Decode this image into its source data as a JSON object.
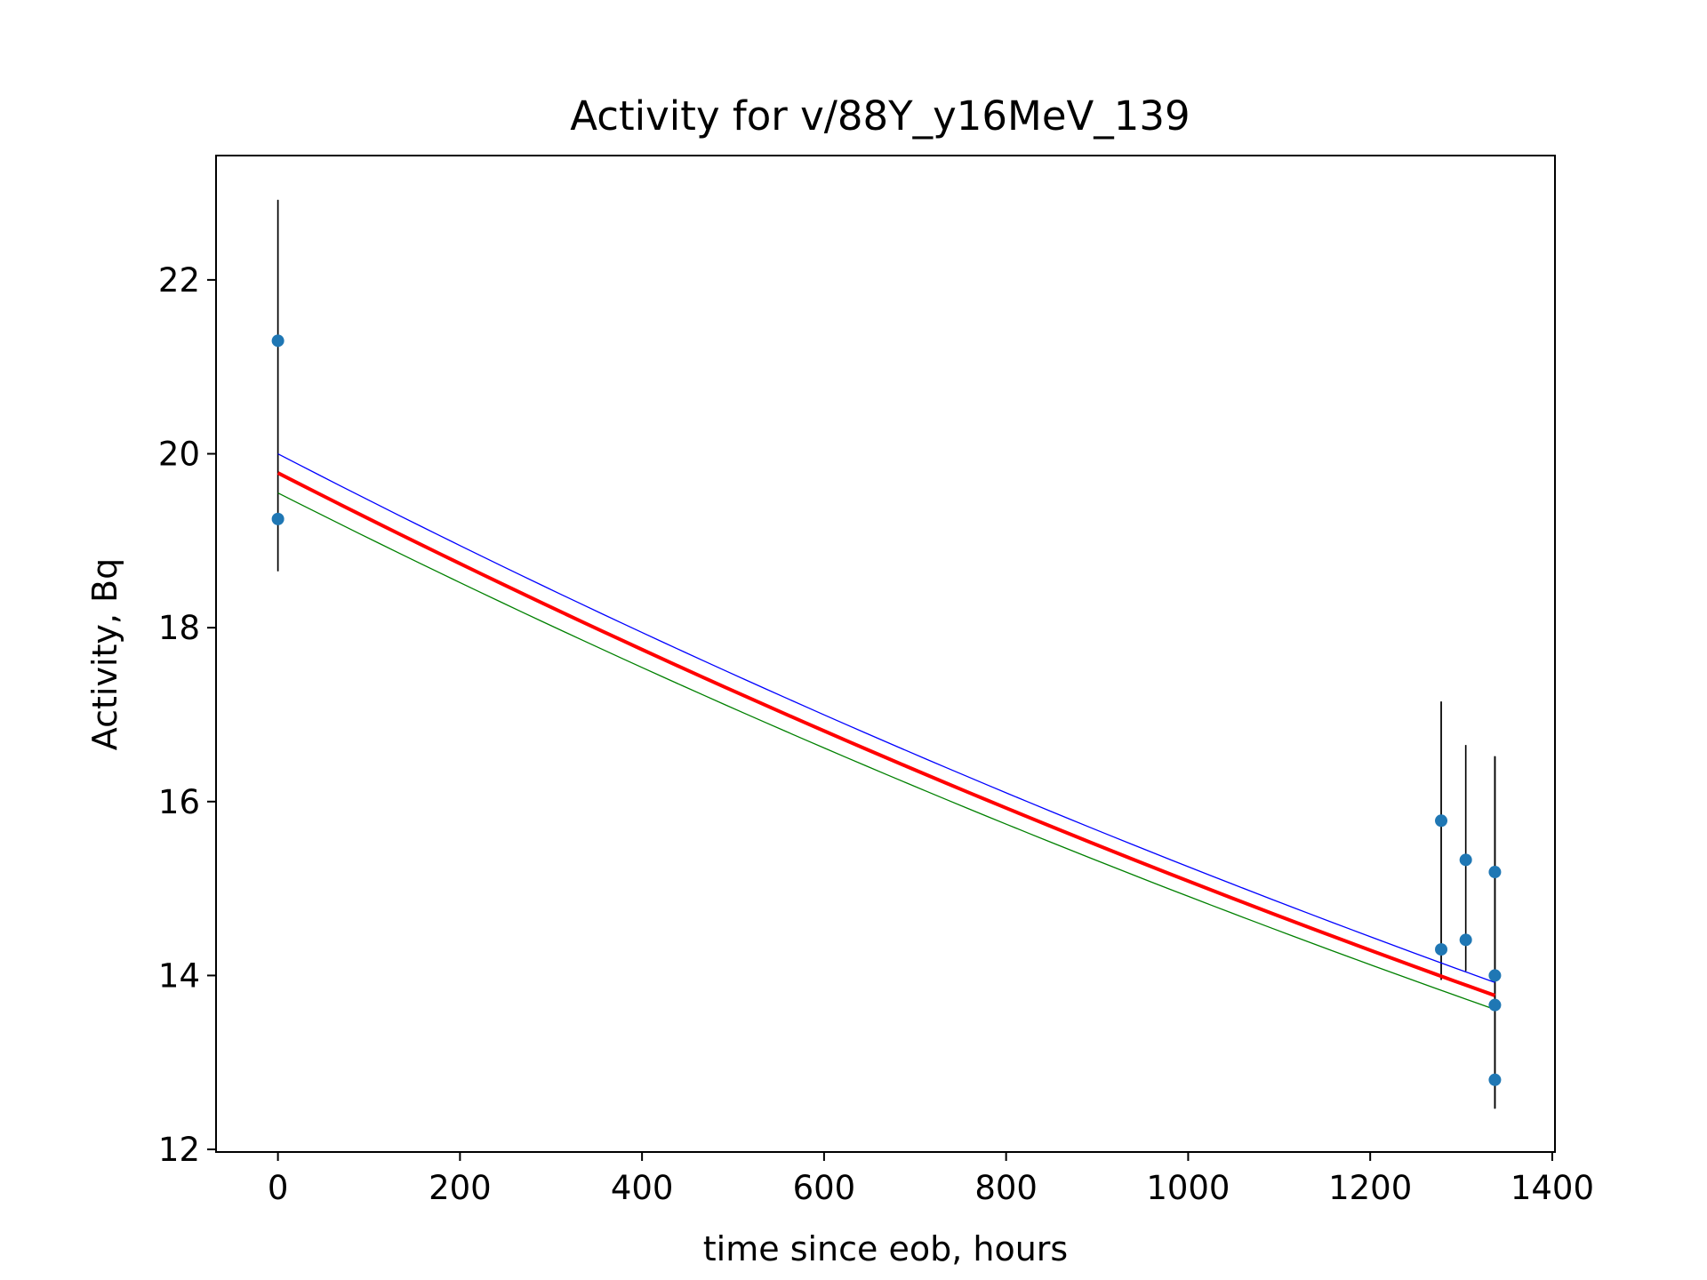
{
  "chart_data": {
    "type": "scatter",
    "title": "Activity for v/88Y_y16MeV_139",
    "xlabel": "time since eob, hours",
    "ylabel": "Activity, Bq",
    "xlim": [
      -68,
      1403
    ],
    "ylim": [
      11.97,
      23.43
    ],
    "xticks": [
      0,
      200,
      400,
      600,
      800,
      1000,
      1200,
      1400
    ],
    "yticks": [
      12,
      14,
      16,
      18,
      20,
      22
    ],
    "grid": false,
    "legend": "none",
    "points": [
      {
        "x": 0,
        "y": 21.3,
        "err_lo": 18.65,
        "err_hi": 22.92
      },
      {
        "x": 0,
        "y": 19.25,
        "err_lo": 18.65,
        "err_hi": 22.92
      },
      {
        "x": 1278,
        "y": 15.78,
        "err_lo": 13.95,
        "err_hi": 17.15
      },
      {
        "x": 1278,
        "y": 14.3,
        "err_lo": 13.95,
        "err_hi": 17.15
      },
      {
        "x": 1305,
        "y": 15.33,
        "err_lo": 14.05,
        "err_hi": 16.65
      },
      {
        "x": 1305,
        "y": 14.41,
        "err_lo": 14.05,
        "err_hi": 16.65
      },
      {
        "x": 1337,
        "y": 15.19,
        "err_lo": 12.47,
        "err_hi": 16.52
      },
      {
        "x": 1337,
        "y": 14.0,
        "err_lo": 12.47,
        "err_hi": 16.52
      },
      {
        "x": 1337,
        "y": 13.66,
        "err_lo": 12.47,
        "err_hi": 16.52
      },
      {
        "x": 1337,
        "y": 12.8,
        "err_lo": 12.47,
        "err_hi": 16.52
      }
    ],
    "series": [
      {
        "color": "#0000ff",
        "x": [
          0,
          1337
        ],
        "y_start": 20.0,
        "y_end": 13.92
      },
      {
        "color": "#ff0000",
        "x": [
          0,
          1337
        ],
        "y_start": 19.78,
        "y_end": 13.77
      },
      {
        "color": "#008000",
        "x": [
          0,
          1337
        ],
        "y_start": 19.55,
        "y_end": 13.61
      }
    ],
    "colors": {
      "points": "#1f77b4",
      "errorbars": "#000000"
    }
  }
}
